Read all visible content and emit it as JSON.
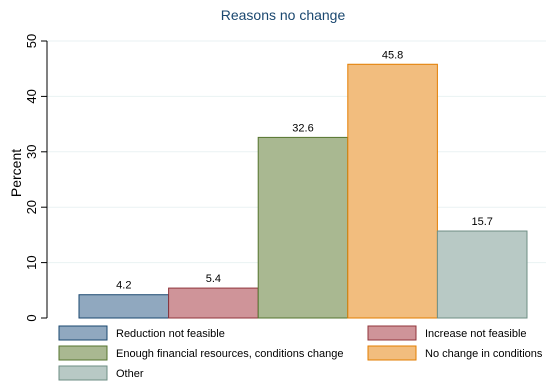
{
  "chart_data": {
    "type": "bar",
    "title": "Reasons no change",
    "ylabel": "Percent",
    "xlabel": "",
    "ylim": [
      0,
      50
    ],
    "yticks": [
      0,
      10,
      20,
      30,
      40,
      50
    ],
    "grid": true,
    "legend_position": "bottom",
    "series": [
      {
        "name": "Reduction not feasible",
        "value": 4.2,
        "label": "4.2",
        "fill": "#90a8bf",
        "stroke": "#1a476f"
      },
      {
        "name": "Increase not feasible",
        "value": 5.4,
        "label": "5.4",
        "fill": "#cf9499",
        "stroke": "#90353b"
      },
      {
        "name": "Enough financial resources, conditions change",
        "value": 32.6,
        "label": "32.6",
        "fill": "#a9b891",
        "stroke": "#55752f"
      },
      {
        "name": "No change in conditions",
        "value": 45.8,
        "label": "45.8",
        "fill": "#f2bd7e",
        "stroke": "#e37e00"
      },
      {
        "name": "Other",
        "value": 15.7,
        "label": "15.7",
        "fill": "#b8c9c5",
        "stroke": "#6e8e84"
      }
    ]
  }
}
